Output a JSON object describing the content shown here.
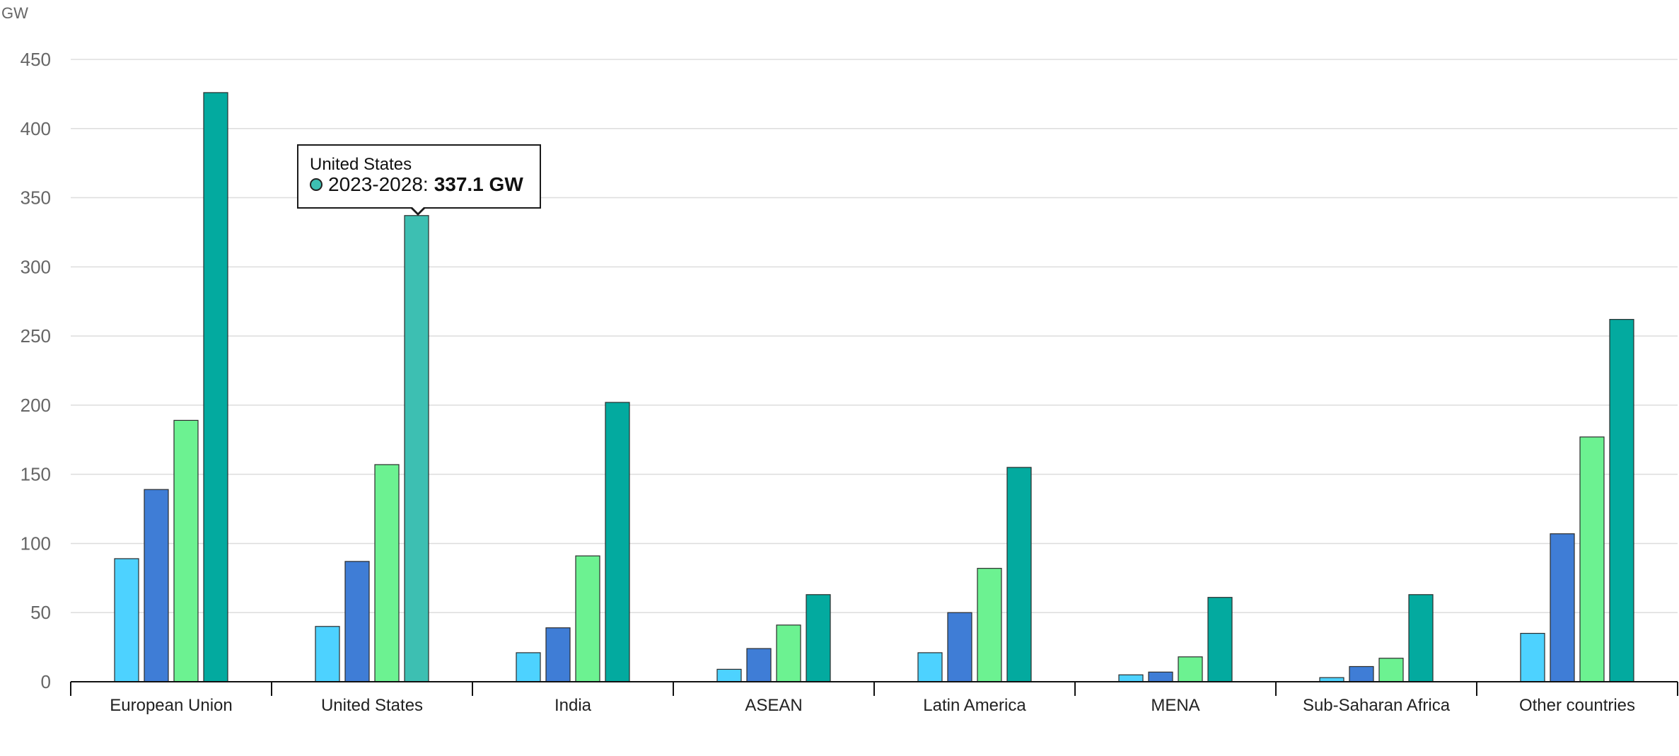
{
  "chart_data": {
    "type": "bar",
    "ylabel": "GW",
    "ylim": [
      0,
      450
    ],
    "yticks": [
      0,
      50,
      100,
      150,
      200,
      250,
      300,
      350,
      400,
      450
    ],
    "grid": true,
    "categories": [
      "European Union",
      "United States",
      "India",
      "ASEAN",
      "Latin America",
      "MENA",
      "Sub-Saharan Africa",
      "Other countries"
    ],
    "series": [
      {
        "color": "#4dd2ff",
        "values": [
          89,
          40,
          21,
          9,
          21,
          5,
          3,
          35
        ]
      },
      {
        "color": "#3f7dd6",
        "values": [
          139,
          87,
          39,
          24,
          50,
          7,
          11,
          107
        ]
      },
      {
        "color": "#6cf291",
        "values": [
          189,
          157,
          91,
          41,
          82,
          18,
          17,
          177
        ]
      },
      {
        "name": "2023-2028",
        "color": "#03aa9f",
        "values": [
          426,
          337.1,
          202,
          63,
          155,
          61,
          63,
          262
        ]
      }
    ],
    "tooltip": {
      "category": "United States",
      "series": "2023-2028",
      "separator": ":",
      "value": "337.1 GW",
      "color": "#3dbfb2"
    }
  }
}
